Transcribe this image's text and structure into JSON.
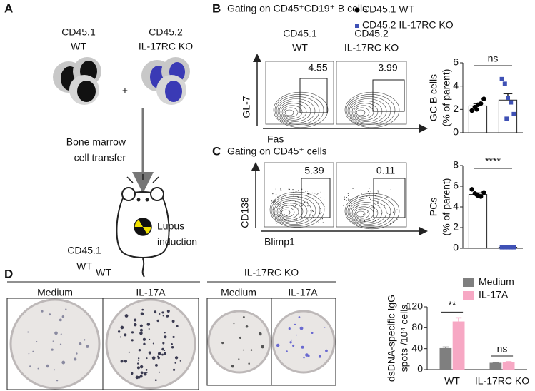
{
  "panel_labels": [
    "A",
    "B",
    "C",
    "D"
  ],
  "panel_a": {
    "donor1": [
      "CD45.1",
      "WT"
    ],
    "plus": "+",
    "donor2": [
      "CD45.2",
      "IL-17RC KO"
    ],
    "transfer": [
      "Bone marrow",
      "cell transfer"
    ],
    "recipient": [
      "CD45.1",
      "WT"
    ],
    "induction": [
      "Lupus",
      "induction"
    ]
  },
  "panel_b": {
    "title": "Gating on CD45⁺CD19⁺ B cells",
    "headers": [
      [
        "CD45.1",
        "WT"
      ],
      [
        "CD45.2",
        "IL-17RC KO"
      ]
    ],
    "gates": [
      4.55,
      3.99
    ],
    "y_axis": "GL-7",
    "x_axis": "Fas"
  },
  "panel_c": {
    "title": "Gating on CD45⁺ cells",
    "gates": [
      5.39,
      0.11
    ],
    "y_axis": "CD138",
    "x_axis": "Blimp1"
  },
  "panel_d": {
    "groups": [
      "WT",
      "IL-17RC KO"
    ],
    "wells": [
      "Medium",
      "IL-17A",
      "Medium",
      "IL-17A"
    ]
  },
  "chart_data": [
    {
      "type": "bar",
      "bar_style": "outline",
      "ylabel": [
        "GC B cells",
        "(% of parent)"
      ],
      "ylim": [
        0,
        6
      ],
      "yticks": [
        0,
        2,
        4,
        6
      ],
      "categories": [
        null
      ],
      "series": [
        {
          "name": "CD45.1 WT",
          "color": "#000000",
          "marker": "circle",
          "values": [
            2.3
          ],
          "errors": [
            0.2
          ],
          "points": [
            1.9,
            2.2,
            2.4,
            2.5,
            2.9,
            2.0
          ]
        },
        {
          "name": "CD45.2 IL-17RC KO",
          "color": "#3f51b5",
          "marker": "square",
          "values": [
            2.8
          ],
          "errors": [
            0.55
          ],
          "points": [
            4.6,
            4.2,
            3.0,
            2.6,
            1.6,
            1.2
          ]
        }
      ],
      "annotations": [
        "ns"
      ]
    },
    {
      "type": "bar",
      "bar_style": "outline",
      "ylabel": [
        "PCs",
        "(% of parent)"
      ],
      "ylim": [
        0,
        8
      ],
      "yticks": [
        0,
        2,
        4,
        6,
        8
      ],
      "categories": [
        null
      ],
      "series": [
        {
          "color": "#000000",
          "marker": "circle",
          "values": [
            5.2
          ],
          "errors": [
            0.15
          ],
          "points": [
            5.7,
            5.3,
            5.1,
            5.0,
            5.4,
            5.2
          ]
        },
        {
          "color": "#3f51b5",
          "marker": "square",
          "values": [
            0.1
          ],
          "errors": [
            0.02
          ],
          "points": [
            0.1,
            0.1,
            0.1,
            0.1,
            0.1
          ]
        }
      ],
      "annotations": [
        "****"
      ]
    },
    {
      "type": "bar",
      "bar_style": "filled",
      "ylabel": [
        "dsDNA-specific IgG",
        "spots /10⁴ cells"
      ],
      "ylim": [
        0,
        120
      ],
      "yticks": [
        0,
        40,
        80,
        120
      ],
      "categories": [
        "WT",
        "IL-17RC KO"
      ],
      "series": [
        {
          "name": "Medium",
          "color": "#7f7f7f",
          "values": [
            41,
            13
          ],
          "errors": [
            2,
            1
          ]
        },
        {
          "name": "IL-17A",
          "color": "#f7a8c4",
          "values": [
            92,
            14
          ],
          "errors": [
            7,
            1
          ]
        }
      ],
      "annotations": [
        "**",
        "ns"
      ]
    }
  ]
}
